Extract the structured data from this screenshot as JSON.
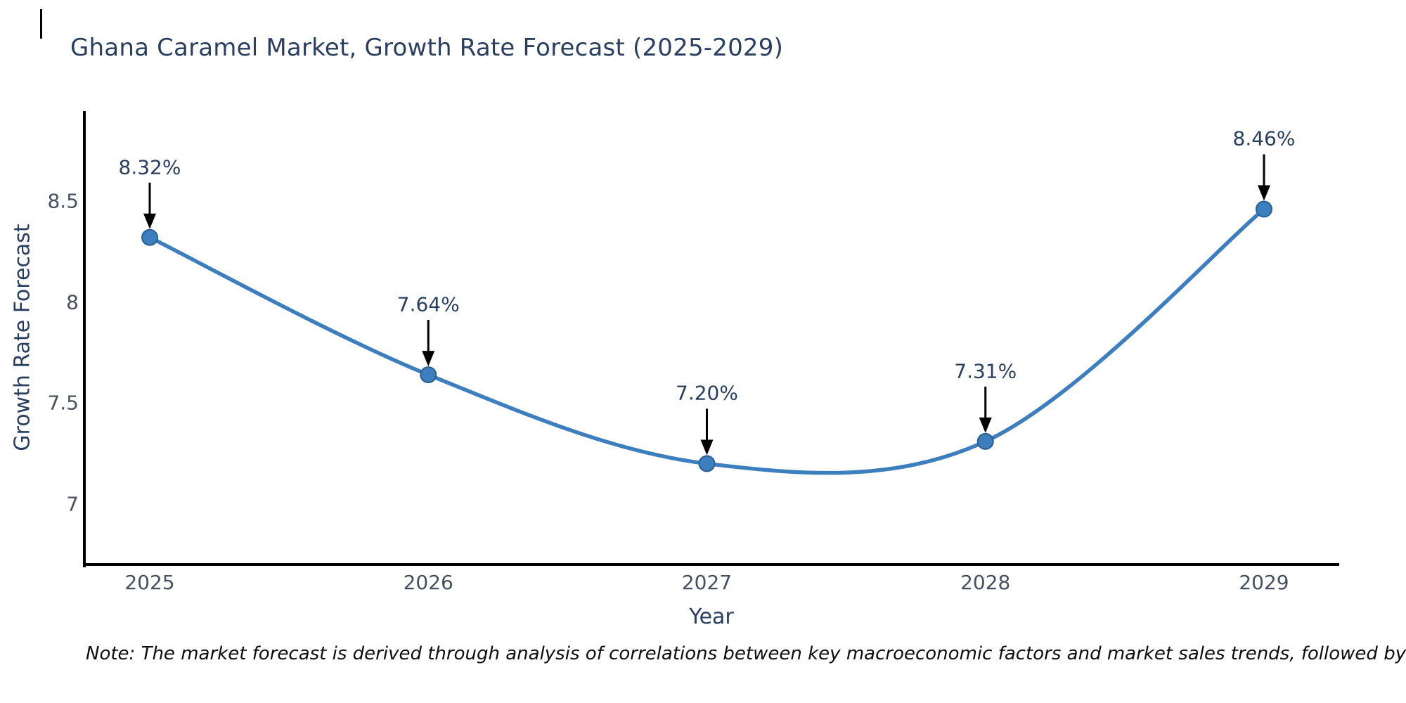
{
  "title": "Ghana Caramel Market, Growth Rate Forecast (2025-2029)",
  "note": "Note: The market forecast is derived through analysis of correlations between key macroeconomic factors and market sales trends, followed by predictive modeling to project future sales",
  "chart_data": {
    "type": "line",
    "title": "Ghana Caramel Market, Growth Rate Forecast (2025-2029)",
    "xlabel": "Year",
    "ylabel": "Growth Rate Forecast",
    "categories": [
      "2025",
      "2026",
      "2027",
      "2028",
      "2029"
    ],
    "values": [
      8.32,
      7.64,
      7.2,
      7.31,
      8.46
    ],
    "point_labels": [
      "8.32%",
      "7.64%",
      "7.20%",
      "7.31%",
      "8.46%"
    ],
    "yticks": [
      8.5,
      8,
      7.5,
      7
    ],
    "ylim": [
      6.72,
      8.95
    ],
    "grid": false,
    "legend": "none",
    "line_shape": "spline",
    "annotation_arrows": true,
    "colors": {
      "line": "#3d7ebf",
      "marker_fill": "#3d7ebf",
      "marker_edge": "#2a5f8f",
      "axis_line": "#000000",
      "tick_text": "#47505f",
      "title_text": "#2a3f5f",
      "annotation_text": "#2a3f5f",
      "arrow": "#000000"
    }
  }
}
